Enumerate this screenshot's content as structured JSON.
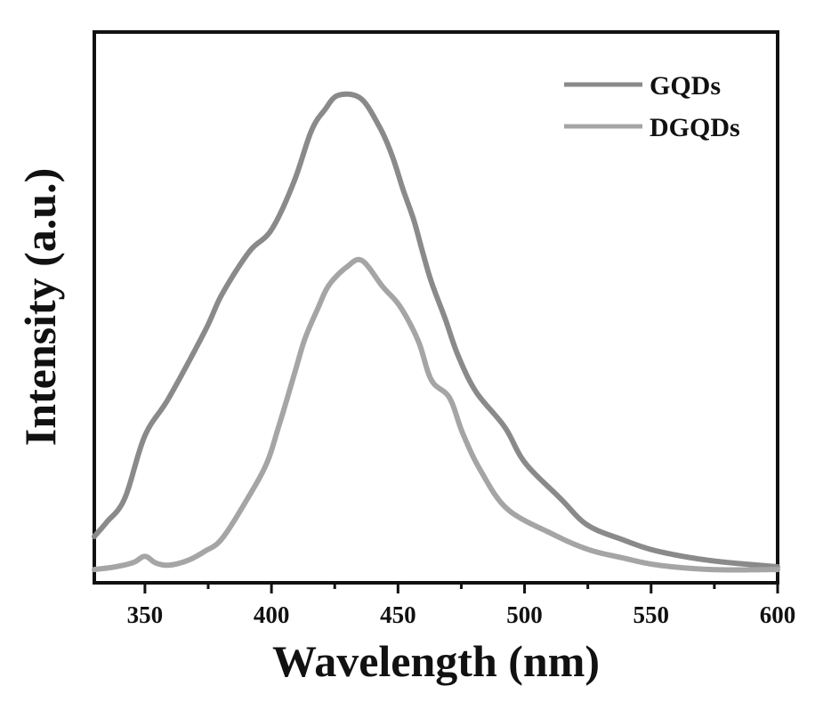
{
  "chart_data": {
    "type": "line",
    "title": "",
    "xlabel": "Wavelength (nm)",
    "ylabel": "Intensity (a.u.)",
    "xlim": [
      330,
      600
    ],
    "ylim": [
      0,
      100
    ],
    "x_ticks": [
      350,
      400,
      450,
      500,
      550,
      600
    ],
    "x_minor_ticks": [
      375,
      425,
      475,
      525,
      575
    ],
    "y_ticks": [],
    "grid": false,
    "legend_position": "top-right",
    "series": [
      {
        "name": "GQDs",
        "color": "#8a8a8a",
        "x": [
          330,
          334.9,
          342,
          350,
          359.5,
          373.6,
          380.6,
          391.2,
          400,
          408.8,
          415.8,
          421.1,
          426.3,
          435.1,
          442.2,
          447.4,
          452,
          456.2,
          459.7,
          463.2,
          468.5,
          473.8,
          480.8,
          492.1,
          500.2,
          514.2,
          524.8,
          538.9,
          552.9,
          574,
          600
        ],
        "y": [
          8.4,
          11.0,
          15.3,
          26.7,
          33.6,
          45.6,
          52.5,
          60.1,
          64.1,
          72.7,
          82.1,
          85.9,
          88.5,
          88.0,
          83.2,
          77.9,
          71.4,
          65.9,
          60.1,
          54.6,
          48.1,
          41.2,
          34.7,
          28.3,
          21.8,
          15.3,
          10.5,
          7.8,
          5.7,
          4.0,
          2.9
        ]
      },
      {
        "name": "DGQDs",
        "color": "#a5a5a5",
        "x": [
          330,
          338.4,
          345.5,
          350,
          354.3,
          359.5,
          366.6,
          373.6,
          380.6,
          391.2,
          398.2,
          402.8,
          406.3,
          409.8,
          413.3,
          418.3,
          422.8,
          429.9,
          435.8,
          443.9,
          450.9,
          458,
          463.2,
          470.3,
          475.6,
          482.6,
          493.2,
          510.8,
          524.8,
          538.9,
          552.9,
          574,
          600
        ],
        "y": [
          2.4,
          2.9,
          3.7,
          4.8,
          3.6,
          3.2,
          4.0,
          5.7,
          8.1,
          15.8,
          21.8,
          28.3,
          33.6,
          39.1,
          44.4,
          49.8,
          54.1,
          57.4,
          58.5,
          53.8,
          50.1,
          43.9,
          36.8,
          33.6,
          27.1,
          20.4,
          13.4,
          8.9,
          6.1,
          4.5,
          3.2,
          2.4,
          2.4
        ]
      }
    ]
  }
}
